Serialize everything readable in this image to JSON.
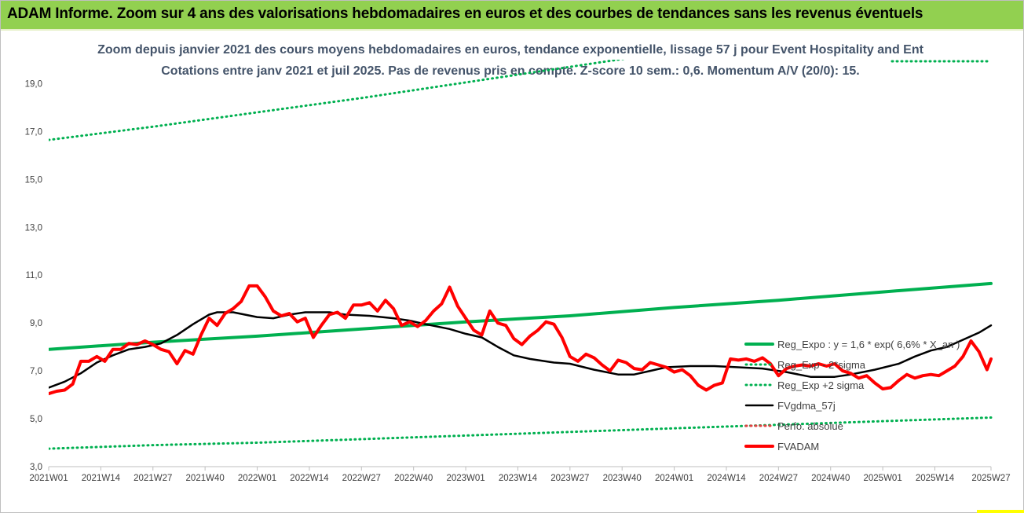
{
  "header": {
    "title": "ADAM Informe. Zoom sur 4 ans des valorisations hebdomadaires en euros et des courbes de tendances sans les revenus éventuels"
  },
  "colors": {
    "header_bg": "#92d050",
    "trend": "#00b050",
    "band": "#00b050",
    "perfo": "#e04040",
    "smooth": "#000000",
    "price": "#ff0000",
    "title": "#44546a"
  },
  "chart_data": {
    "type": "line",
    "title": "Zoom depuis janvier 2021 des cours moyens hebdomadaires en euros, tendance exponentielle, lissage 57 j pour Event Hospitality and Ent",
    "subtitle": "Cotations entre janv 2021 et juil 2025. Pas de revenus pris en compte. Z-score 10 sem.: 0,6. Momentum A/V (20/0): 15.",
    "xlabel": "",
    "ylabel": "",
    "ylim": [
      3.0,
      20.0
    ],
    "yticks": [
      "3,0",
      "5,0",
      "7,0",
      "9,0",
      "11,0",
      "13,0",
      "15,0",
      "17,0",
      "19,0"
    ],
    "ytick_values": [
      3,
      5,
      7,
      9,
      11,
      13,
      15,
      17,
      19
    ],
    "xlim": [
      0,
      235
    ],
    "x_unit": "weeks since 2021W01",
    "xtick_labels": [
      "2021W01",
      "2021W14",
      "2021W27",
      "2021W40",
      "2022W01",
      "2022W14",
      "2022W27",
      "2022W40",
      "2023W01",
      "2023W14",
      "2023W27",
      "2023W40",
      "2024W01",
      "2024W14",
      "2024W27",
      "2024W40",
      "2025W01",
      "2025W14",
      "2025W27"
    ],
    "xtick_values": [
      0,
      13,
      26,
      39,
      52,
      65,
      78,
      91,
      104,
      117,
      130,
      143,
      156,
      169,
      182,
      195,
      208,
      221,
      235
    ],
    "grid": "none",
    "legend_position": "right",
    "series": [
      {
        "name": "Reg_Expo : y = 1,6 * exp( 6,6% * X_an )",
        "style": "solid-thick",
        "color": "#00b050",
        "points": [
          [
            0,
            7.9
          ],
          [
            26,
            8.2
          ],
          [
            52,
            8.45
          ],
          [
            78,
            8.75
          ],
          [
            104,
            9.05
          ],
          [
            130,
            9.3
          ],
          [
            156,
            9.65
          ],
          [
            182,
            9.95
          ],
          [
            208,
            10.3
          ],
          [
            235,
            10.65
          ]
        ]
      },
      {
        "name": "Reg_Exp - 2*sigma",
        "style": "dotted",
        "color": "#00b050",
        "points": [
          [
            0,
            3.75
          ],
          [
            26,
            3.9
          ],
          [
            52,
            4.0
          ],
          [
            78,
            4.15
          ],
          [
            104,
            4.3
          ],
          [
            130,
            4.45
          ],
          [
            156,
            4.6
          ],
          [
            182,
            4.75
          ],
          [
            208,
            4.9
          ],
          [
            235,
            5.05
          ]
        ]
      },
      {
        "name": "Reg_Exp +2 sigma",
        "style": "dotted",
        "color": "#00b050",
        "points": [
          [
            0,
            16.65
          ],
          [
            26,
            17.2
          ],
          [
            52,
            17.8
          ],
          [
            78,
            18.4
          ],
          [
            104,
            19.05
          ],
          [
            130,
            19.7
          ],
          [
            156,
            20.35
          ]
        ]
      },
      {
        "name": "FVgdma_57j",
        "style": "solid",
        "color": "#000000",
        "points": [
          [
            0,
            6.3
          ],
          [
            4,
            6.55
          ],
          [
            8,
            6.9
          ],
          [
            12,
            7.35
          ],
          [
            16,
            7.65
          ],
          [
            20,
            7.9
          ],
          [
            24,
            8.0
          ],
          [
            28,
            8.15
          ],
          [
            32,
            8.5
          ],
          [
            36,
            8.95
          ],
          [
            40,
            9.35
          ],
          [
            42,
            9.45
          ],
          [
            46,
            9.45
          ],
          [
            52,
            9.25
          ],
          [
            56,
            9.2
          ],
          [
            60,
            9.35
          ],
          [
            64,
            9.45
          ],
          [
            70,
            9.45
          ],
          [
            74,
            9.35
          ],
          [
            80,
            9.3
          ],
          [
            86,
            9.2
          ],
          [
            90,
            9.1
          ],
          [
            94,
            8.95
          ],
          [
            100,
            8.75
          ],
          [
            104,
            8.55
          ],
          [
            108,
            8.4
          ],
          [
            112,
            8.0
          ],
          [
            116,
            7.65
          ],
          [
            120,
            7.5
          ],
          [
            126,
            7.35
          ],
          [
            130,
            7.3
          ],
          [
            136,
            7.05
          ],
          [
            142,
            6.85
          ],
          [
            146,
            6.85
          ],
          [
            150,
            7.0
          ],
          [
            154,
            7.15
          ],
          [
            160,
            7.2
          ],
          [
            166,
            7.2
          ],
          [
            172,
            7.15
          ],
          [
            178,
            7.1
          ],
          [
            184,
            6.95
          ],
          [
            190,
            6.75
          ],
          [
            196,
            6.75
          ],
          [
            200,
            6.85
          ],
          [
            206,
            7.05
          ],
          [
            212,
            7.3
          ],
          [
            216,
            7.6
          ],
          [
            220,
            7.85
          ],
          [
            224,
            8.0
          ],
          [
            228,
            8.3
          ],
          [
            232,
            8.6
          ],
          [
            235,
            8.9
          ]
        ]
      },
      {
        "name": "Perfo. absolue",
        "style": "dotted",
        "color": "#e04040",
        "points": []
      },
      {
        "name": "FVADAM",
        "style": "solid-thick",
        "color": "#ff0000",
        "points": [
          [
            0,
            6.05
          ],
          [
            2,
            6.15
          ],
          [
            4,
            6.2
          ],
          [
            6,
            6.45
          ],
          [
            8,
            7.4
          ],
          [
            10,
            7.4
          ],
          [
            12,
            7.6
          ],
          [
            14,
            7.4
          ],
          [
            16,
            7.9
          ],
          [
            18,
            7.9
          ],
          [
            20,
            8.15
          ],
          [
            22,
            8.1
          ],
          [
            24,
            8.25
          ],
          [
            26,
            8.1
          ],
          [
            28,
            7.9
          ],
          [
            30,
            7.8
          ],
          [
            32,
            7.3
          ],
          [
            34,
            7.85
          ],
          [
            36,
            7.7
          ],
          [
            38,
            8.5
          ],
          [
            40,
            9.2
          ],
          [
            42,
            8.9
          ],
          [
            44,
            9.4
          ],
          [
            46,
            9.6
          ],
          [
            48,
            9.9
          ],
          [
            50,
            10.55
          ],
          [
            52,
            10.55
          ],
          [
            54,
            10.1
          ],
          [
            56,
            9.5
          ],
          [
            58,
            9.3
          ],
          [
            60,
            9.4
          ],
          [
            62,
            9.05
          ],
          [
            64,
            9.2
          ],
          [
            66,
            8.4
          ],
          [
            68,
            8.9
          ],
          [
            70,
            9.35
          ],
          [
            72,
            9.45
          ],
          [
            74,
            9.2
          ],
          [
            76,
            9.75
          ],
          [
            78,
            9.75
          ],
          [
            80,
            9.85
          ],
          [
            82,
            9.5
          ],
          [
            84,
            9.95
          ],
          [
            86,
            9.6
          ],
          [
            88,
            8.9
          ],
          [
            90,
            9.05
          ],
          [
            92,
            8.85
          ],
          [
            94,
            9.1
          ],
          [
            96,
            9.5
          ],
          [
            98,
            9.8
          ],
          [
            100,
            10.5
          ],
          [
            102,
            9.7
          ],
          [
            104,
            9.2
          ],
          [
            106,
            8.7
          ],
          [
            108,
            8.5
          ],
          [
            110,
            9.5
          ],
          [
            112,
            9.0
          ],
          [
            114,
            8.9
          ],
          [
            116,
            8.35
          ],
          [
            118,
            8.1
          ],
          [
            120,
            8.45
          ],
          [
            122,
            8.7
          ],
          [
            124,
            9.05
          ],
          [
            126,
            8.95
          ],
          [
            128,
            8.4
          ],
          [
            130,
            7.6
          ],
          [
            132,
            7.4
          ],
          [
            134,
            7.7
          ],
          [
            136,
            7.55
          ],
          [
            138,
            7.25
          ],
          [
            140,
            7.0
          ],
          [
            142,
            7.45
          ],
          [
            144,
            7.35
          ],
          [
            146,
            7.1
          ],
          [
            148,
            7.05
          ],
          [
            150,
            7.35
          ],
          [
            152,
            7.25
          ],
          [
            154,
            7.15
          ],
          [
            156,
            6.95
          ],
          [
            158,
            7.05
          ],
          [
            160,
            6.8
          ],
          [
            162,
            6.4
          ],
          [
            164,
            6.2
          ],
          [
            166,
            6.4
          ],
          [
            168,
            6.5
          ],
          [
            170,
            7.5
          ],
          [
            172,
            7.45
          ],
          [
            174,
            7.5
          ],
          [
            176,
            7.4
          ],
          [
            178,
            7.55
          ],
          [
            180,
            7.3
          ],
          [
            182,
            6.8
          ],
          [
            184,
            7.1
          ],
          [
            186,
            7.2
          ],
          [
            188,
            7.25
          ],
          [
            190,
            7.2
          ],
          [
            192,
            7.3
          ],
          [
            194,
            7.2
          ],
          [
            196,
            7.3
          ],
          [
            198,
            7.0
          ],
          [
            200,
            6.9
          ],
          [
            202,
            6.7
          ],
          [
            204,
            6.8
          ],
          [
            206,
            6.5
          ],
          [
            208,
            6.25
          ],
          [
            210,
            6.3
          ],
          [
            212,
            6.6
          ],
          [
            214,
            6.85
          ],
          [
            216,
            6.7
          ],
          [
            218,
            6.8
          ],
          [
            220,
            6.85
          ],
          [
            222,
            6.8
          ],
          [
            224,
            7.0
          ],
          [
            226,
            7.2
          ],
          [
            228,
            7.6
          ],
          [
            230,
            8.25
          ],
          [
            232,
            7.8
          ],
          [
            234,
            7.05
          ],
          [
            235,
            7.5
          ]
        ]
      }
    ]
  }
}
